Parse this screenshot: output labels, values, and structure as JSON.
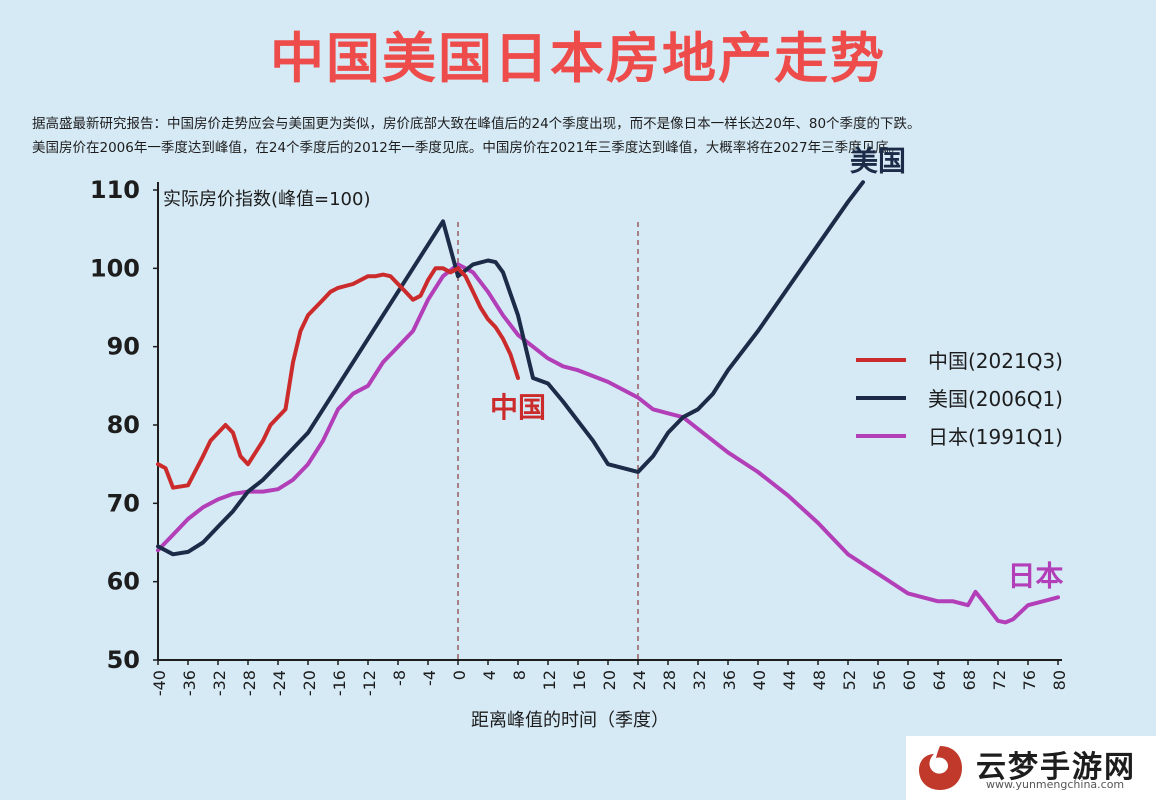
{
  "title": "中国美国日本房地产走势",
  "notes": {
    "line1": "据高盛最新研究报告：中国房价走势应会与美国更为类似，房价底部大致在峰值后的24个季度出现，而不是像日本一样长达20年、80个季度的下跌。",
    "line2": "美国房价在2006年一季度达到峰值，在24个季度后的2012年一季度见底。中国房价在2021年三季度达到峰值，大概率将在2027年三季度见底。"
  },
  "chart_data": {
    "type": "line",
    "ylabel": "实际房价指数(峰值=100)",
    "xlabel": "距离峰值的时间（季度）",
    "xlim": [
      -40,
      80
    ],
    "ylim": [
      50,
      110
    ],
    "yticks": [
      50,
      60,
      70,
      80,
      90,
      100,
      110
    ],
    "xticks": [
      -40,
      -36,
      -32,
      -28,
      -24,
      -20,
      -16,
      -12,
      -8,
      -4,
      0,
      4,
      8,
      12,
      16,
      20,
      24,
      28,
      32,
      36,
      40,
      44,
      48,
      52,
      56,
      60,
      64,
      68,
      72,
      76,
      80
    ],
    "vlines": [
      0,
      24
    ],
    "grid": false,
    "legend_position": "right",
    "series": [
      {
        "name": "中国(2021Q3)",
        "label": "中国",
        "color": "#cc2b2b",
        "x": [
          -40,
          -39,
          -38,
          -36,
          -34,
          -33,
          -31,
          -30,
          -29,
          -28,
          -26,
          -25,
          -23,
          -22,
          -21,
          -20,
          -19,
          -18,
          -17,
          -16,
          -14,
          -12,
          -11,
          -10,
          -9,
          -8,
          -7,
          -6,
          -5,
          -4,
          -3,
          -2,
          -1,
          0,
          1,
          2,
          3,
          4,
          5,
          6,
          7,
          8
        ],
        "values": [
          75,
          74.5,
          72,
          72.3,
          76,
          78,
          80,
          79,
          76,
          75,
          78,
          80,
          82,
          88,
          92,
          94,
          95,
          96,
          97,
          97.5,
          98,
          99,
          99,
          99.2,
          99,
          98,
          97,
          96,
          96.5,
          98.5,
          100,
          100,
          99.5,
          100,
          99,
          97,
          95,
          93.5,
          92.5,
          91,
          89,
          86
        ]
      },
      {
        "name": "美国(2006Q1)",
        "label": "美国",
        "color": "#1c2b48",
        "x": [
          -40,
          -38,
          -36,
          -34,
          -32,
          -30,
          -28,
          -26,
          -24,
          -22,
          -20,
          -18,
          -16,
          -14,
          -12,
          -10,
          -8,
          -6,
          -4,
          -2,
          0,
          2,
          4,
          5,
          6,
          8,
          10,
          12,
          14,
          16,
          18,
          20,
          22,
          24,
          26,
          28,
          30,
          32,
          34,
          36,
          40,
          44,
          48,
          52,
          54
        ],
        "values": [
          64.5,
          63.5,
          63.8,
          65,
          67,
          69,
          71.5,
          73,
          75,
          77,
          79,
          82,
          85,
          88,
          91,
          94,
          97,
          100,
          103,
          106,
          99,
          100.5,
          101,
          100.8,
          99.5,
          94,
          86,
          85.3,
          83,
          80.5,
          78,
          75,
          74.5,
          74,
          76,
          79,
          81,
          82,
          84,
          87,
          92,
          97.5,
          103,
          108.5,
          111
        ]
      },
      {
        "name": "日本(1991Q1)",
        "label": "日本",
        "color": "#b23fb8",
        "x": [
          -40,
          -38,
          -36,
          -34,
          -32,
          -30,
          -28,
          -26,
          -24,
          -22,
          -20,
          -18,
          -16,
          -14,
          -12,
          -10,
          -8,
          -6,
          -4,
          -2,
          0,
          2,
          4,
          6,
          8,
          10,
          12,
          14,
          16,
          20,
          24,
          26,
          28,
          30,
          32,
          36,
          40,
          44,
          48,
          50,
          52,
          56,
          60,
          64,
          66,
          68,
          69,
          70,
          72,
          73,
          74,
          76,
          78,
          80
        ],
        "values": [
          64,
          66,
          68,
          69.5,
          70.5,
          71.2,
          71.5,
          71.5,
          71.8,
          73,
          75,
          78,
          82,
          84,
          85,
          88,
          90,
          92,
          96,
          99,
          100.5,
          99.5,
          97,
          94,
          91.5,
          90,
          88.5,
          87.5,
          87,
          85.5,
          83.5,
          82,
          81.5,
          81,
          79.5,
          76.5,
          74,
          71,
          67.5,
          65.5,
          63.5,
          61,
          58.5,
          57.5,
          57.5,
          57,
          58.7,
          57.5,
          55,
          54.8,
          55.2,
          57,
          57.5,
          58
        ]
      }
    ]
  },
  "watermark": {
    "name": "云梦手游网",
    "url": "www.yunmengchina.com"
  }
}
